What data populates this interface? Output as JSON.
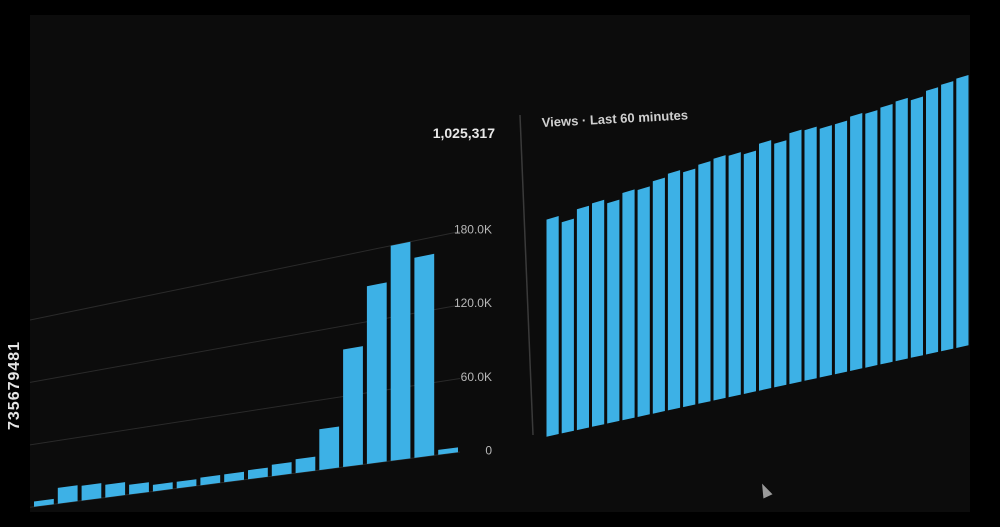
{
  "side_text": "735679481",
  "colors": {
    "bar": "#3db1e6",
    "grid": "#2a2a2a",
    "divider": "#3a3a3a",
    "background": "#0c0c0c"
  },
  "chart_data": [
    {
      "type": "bar",
      "total_label": "1,025,317",
      "y_tick_labels": [
        "180.0K",
        "120.0K",
        "60.0K",
        "0"
      ],
      "y_ticks": [
        180000,
        120000,
        60000,
        0
      ],
      "ylim": [
        0,
        200000
      ],
      "values": [
        5000,
        15000,
        14000,
        12000,
        9000,
        6000,
        6000,
        7000,
        7000,
        8000,
        10000,
        12000,
        35000,
        100000,
        150000,
        180000,
        166000,
        4000
      ],
      "grid": true
    },
    {
      "type": "bar",
      "title": "Views · Last 60 minutes",
      "values": [
        155,
        150,
        156,
        157,
        154,
        158,
        157,
        160,
        162,
        160,
        162,
        163,
        162,
        160,
        164,
        161,
        165,
        164,
        162,
        162,
        164,
        163,
        164,
        165,
        163,
        166,
        167,
        168
      ]
    }
  ]
}
